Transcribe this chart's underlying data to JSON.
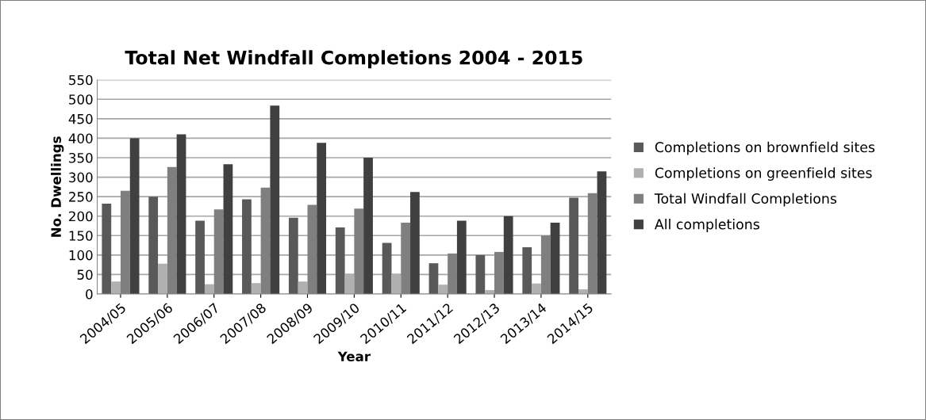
{
  "chart_data": {
    "type": "bar",
    "title": "Total Net Windfall Completions 2004 - 2015",
    "xlabel": "Year",
    "ylabel": "No. Dwellings",
    "categories": [
      "2004/05",
      "2005/06",
      "2006/07",
      "2007/08",
      "2008/09",
      "2009/10",
      "2010/11",
      "2011/12",
      "2012/13",
      "2013/14",
      "2014/15"
    ],
    "series": [
      {
        "name": "Completions on brownfield sites",
        "color": "#595959",
        "values": [
          232,
          250,
          188,
          243,
          196,
          171,
          131,
          79,
          100,
          120,
          247
        ]
      },
      {
        "name": "Completions on greenfield sites",
        "color": "#b0b0b0",
        "values": [
          32,
          78,
          25,
          28,
          32,
          52,
          52,
          24,
          10,
          27,
          12
        ]
      },
      {
        "name": "Total Windfall Completions",
        "color": "#7f7f7f",
        "values": [
          265,
          326,
          217,
          273,
          229,
          219,
          183,
          104,
          108,
          150,
          259
        ]
      },
      {
        "name": "All completions",
        "color": "#404040",
        "values": [
          400,
          410,
          333,
          484,
          388,
          350,
          262,
          188,
          200,
          183,
          315
        ]
      }
    ],
    "ylim": [
      0,
      550
    ],
    "yticks": [
      0,
      50,
      100,
      150,
      200,
      250,
      300,
      350,
      400,
      450,
      500,
      550
    ],
    "grid": "y",
    "legend": "right"
  }
}
